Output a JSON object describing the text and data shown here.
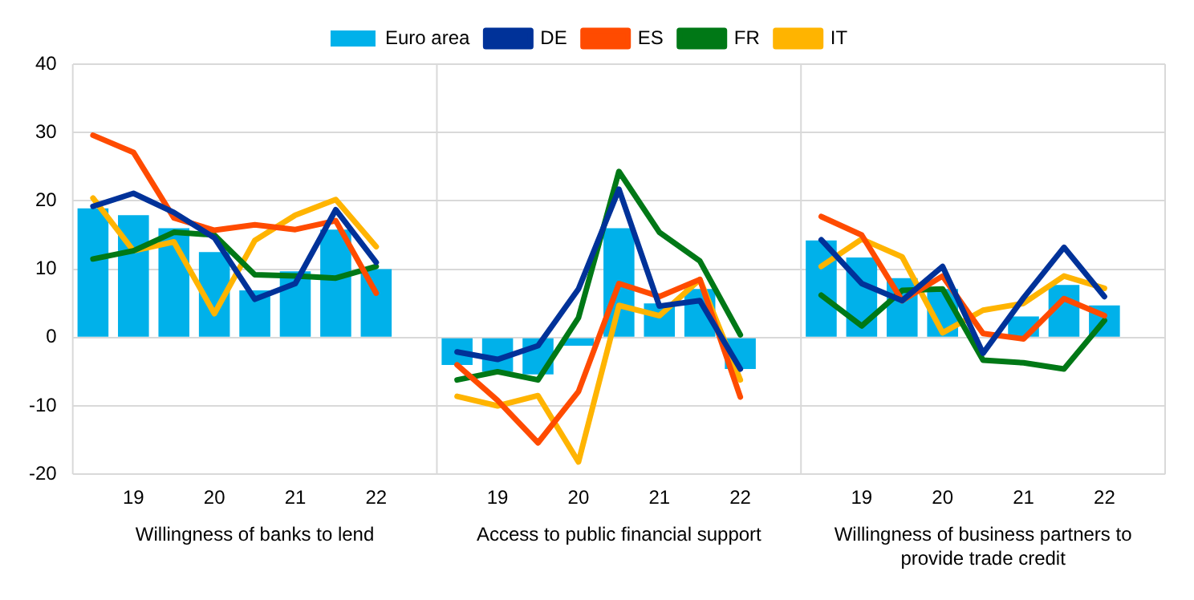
{
  "chart_data": {
    "type": "bar",
    "categories": [
      null,
      "19",
      null,
      "20",
      null,
      "21",
      null,
      "22",
      null,
      null,
      "19",
      null,
      "20",
      null,
      "21",
      null,
      "22",
      null,
      null,
      "19",
      null,
      "20",
      null,
      "21",
      null,
      "22",
      null
    ],
    "series": [
      {
        "name": "Euro area",
        "color": "#00b1ea",
        "values": [
          18.9,
          17.9,
          16,
          12.5,
          6.9,
          9.7,
          15.8,
          10,
          null,
          -4,
          -5,
          -5.4,
          -1.2,
          16,
          5,
          7.1,
          -4.6,
          null,
          14.2,
          11.7,
          8.7,
          7.1,
          null,
          3.1,
          7.7,
          4.7,
          null
        ]
      },
      {
        "name": "DE",
        "type": "line",
        "color": "#003299",
        "values": [
          19.2,
          21.1,
          18.3,
          14.6,
          5.6,
          7.9,
          18.7,
          11,
          null,
          -2.1,
          -3.2,
          -1.2,
          7.1,
          21.7,
          4.6,
          5.4,
          -4.6,
          null,
          14.3,
          7.9,
          5.4,
          10.4,
          -2.3,
          5.8,
          13.2,
          6,
          null
        ]
      },
      {
        "name": "ES",
        "type": "line",
        "color": "#ff4b00",
        "values": [
          29.6,
          27.1,
          17.5,
          15.7,
          16.5,
          15.8,
          17.1,
          6.5,
          null,
          -4,
          -9.2,
          -15.4,
          -7.9,
          7.9,
          6,
          8.5,
          -8.7,
          null,
          17.7,
          15,
          5.4,
          9,
          0.6,
          -0.2,
          5.7,
          3.2,
          null
        ]
      },
      {
        "name": "FR",
        "type": "line",
        "color": "#007816",
        "values": [
          11.5,
          12.7,
          15.4,
          15,
          9.2,
          9,
          8.7,
          10.4,
          null,
          -6.2,
          -5,
          -6.2,
          2.9,
          24.3,
          15.4,
          11.2,
          0.4,
          null,
          6.2,
          1.7,
          6.9,
          7.1,
          -3.3,
          -3.7,
          -4.6,
          2.5,
          null
        ]
      },
      {
        "name": "IT",
        "type": "line",
        "color": "#ffb400",
        "values": [
          20.4,
          12.7,
          14,
          3.5,
          14.2,
          17.9,
          20.2,
          13.3,
          null,
          -8.6,
          -10,
          -8.5,
          -18.2,
          4.7,
          3.2,
          8.5,
          -6.2,
          null,
          10.4,
          14.4,
          11.8,
          0.7,
          4,
          5,
          9,
          7.2,
          null
        ]
      }
    ],
    "ylim": [
      -20,
      40
    ],
    "yticks": [
      -20,
      -10,
      0,
      10,
      20,
      30,
      40
    ],
    "grid": "y",
    "legend": "top",
    "annotations": [
      "Willingness of banks to lend",
      "Access to public financial support",
      "Willingness of business partners to provide trade credit"
    ]
  }
}
